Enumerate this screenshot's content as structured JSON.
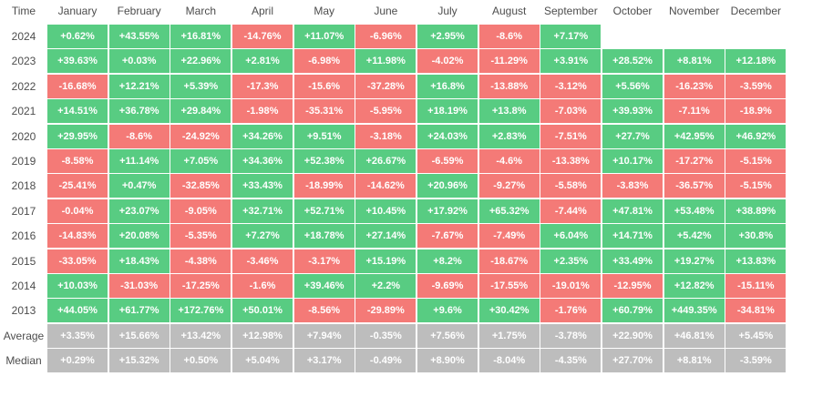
{
  "chart_data": {
    "type": "table",
    "corner_label": "Time",
    "columns": [
      "January",
      "February",
      "March",
      "April",
      "May",
      "June",
      "July",
      "August",
      "September",
      "October",
      "November",
      "December"
    ],
    "rows": [
      {
        "label": "2024",
        "values": [
          "+0.62%",
          "+43.55%",
          "+16.81%",
          "-14.76%",
          "+11.07%",
          "-6.96%",
          "+2.95%",
          "-8.6%",
          "+7.17%",
          null,
          null,
          null
        ]
      },
      {
        "label": "2023",
        "values": [
          "+39.63%",
          "+0.03%",
          "+22.96%",
          "+2.81%",
          "-6.98%",
          "+11.98%",
          "-4.02%",
          "-11.29%",
          "+3.91%",
          "+28.52%",
          "+8.81%",
          "+12.18%"
        ]
      },
      {
        "label": "2022",
        "values": [
          "-16.68%",
          "+12.21%",
          "+5.39%",
          "-17.3%",
          "-15.6%",
          "-37.28%",
          "+16.8%",
          "-13.88%",
          "-3.12%",
          "+5.56%",
          "-16.23%",
          "-3.59%"
        ]
      },
      {
        "label": "2021",
        "values": [
          "+14.51%",
          "+36.78%",
          "+29.84%",
          "-1.98%",
          "-35.31%",
          "-5.95%",
          "+18.19%",
          "+13.8%",
          "-7.03%",
          "+39.93%",
          "-7.11%",
          "-18.9%"
        ]
      },
      {
        "label": "2020",
        "values": [
          "+29.95%",
          "-8.6%",
          "-24.92%",
          "+34.26%",
          "+9.51%",
          "-3.18%",
          "+24.03%",
          "+2.83%",
          "-7.51%",
          "+27.7%",
          "+42.95%",
          "+46.92%"
        ]
      },
      {
        "label": "2019",
        "values": [
          "-8.58%",
          "+11.14%",
          "+7.05%",
          "+34.36%",
          "+52.38%",
          "+26.67%",
          "-6.59%",
          "-4.6%",
          "-13.38%",
          "+10.17%",
          "-17.27%",
          "-5.15%"
        ]
      },
      {
        "label": "2018",
        "values": [
          "-25.41%",
          "+0.47%",
          "-32.85%",
          "+33.43%",
          "-18.99%",
          "-14.62%",
          "+20.96%",
          "-9.27%",
          "-5.58%",
          "-3.83%",
          "-36.57%",
          "-5.15%"
        ]
      },
      {
        "label": "2017",
        "values": [
          "-0.04%",
          "+23.07%",
          "-9.05%",
          "+32.71%",
          "+52.71%",
          "+10.45%",
          "+17.92%",
          "+65.32%",
          "-7.44%",
          "+47.81%",
          "+53.48%",
          "+38.89%"
        ]
      },
      {
        "label": "2016",
        "values": [
          "-14.83%",
          "+20.08%",
          "-5.35%",
          "+7.27%",
          "+18.78%",
          "+27.14%",
          "-7.67%",
          "-7.49%",
          "+6.04%",
          "+14.71%",
          "+5.42%",
          "+30.8%"
        ]
      },
      {
        "label": "2015",
        "values": [
          "-33.05%",
          "+18.43%",
          "-4.38%",
          "-3.46%",
          "-3.17%",
          "+15.19%",
          "+8.2%",
          "-18.67%",
          "+2.35%",
          "+33.49%",
          "+19.27%",
          "+13.83%"
        ]
      },
      {
        "label": "2014",
        "values": [
          "+10.03%",
          "-31.03%",
          "-17.25%",
          "-1.6%",
          "+39.46%",
          "+2.2%",
          "-9.69%",
          "-17.55%",
          "-19.01%",
          "-12.95%",
          "+12.82%",
          "-15.11%"
        ]
      },
      {
        "label": "2013",
        "values": [
          "+44.05%",
          "+61.77%",
          "+172.76%",
          "+50.01%",
          "-8.56%",
          "-29.89%",
          "+9.6%",
          "+30.42%",
          "-1.76%",
          "+60.79%",
          "+449.35%",
          "-34.81%"
        ]
      }
    ],
    "summary_rows": [
      {
        "label": "Average",
        "values": [
          "+3.35%",
          "+15.66%",
          "+13.42%",
          "+12.98%",
          "+7.94%",
          "-0.35%",
          "+7.56%",
          "+1.75%",
          "-3.78%",
          "+22.90%",
          "+46.81%",
          "+5.45%"
        ]
      },
      {
        "label": "Median",
        "values": [
          "+0.29%",
          "+15.32%",
          "+0.50%",
          "+5.04%",
          "+3.17%",
          "-0.49%",
          "+8.90%",
          "-8.04%",
          "-4.35%",
          "+27.70%",
          "+8.81%",
          "-3.59%"
        ]
      }
    ],
    "colors": {
      "positive": "#58cc82",
      "negative": "#f47a77",
      "summary": "#bdbdbd"
    }
  }
}
